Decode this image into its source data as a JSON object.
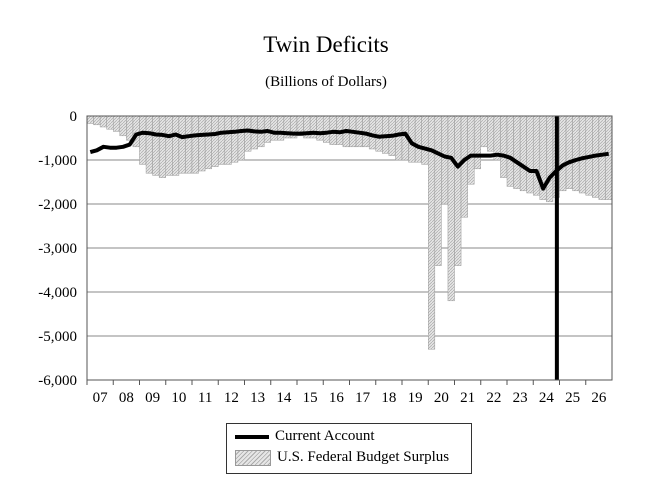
{
  "chart_data": {
    "type": "bar+line",
    "title": "Twin Deficits",
    "subtitle": "(Billions of Dollars)",
    "xlabel": "",
    "ylabel": "",
    "ylim": [
      -6000,
      0
    ],
    "yticks": [
      0,
      -1000,
      -2000,
      -3000,
      -4000,
      -5000,
      -6000
    ],
    "ytick_labels": [
      "0",
      "-1,000",
      "-2,000",
      "-3,000",
      "-4,000",
      "-5,000",
      "-6,000"
    ],
    "xtick_labels": [
      "07",
      "08",
      "09",
      "10",
      "11",
      "12",
      "13",
      "14",
      "15",
      "16",
      "17",
      "18",
      "19",
      "20",
      "21",
      "22",
      "23",
      "24",
      "25",
      "26"
    ],
    "x_start_year": 2007,
    "frequency": "quarterly",
    "grid": true,
    "legend_position": "bottom-center",
    "vertical_marker_year": 2024.9,
    "series": [
      {
        "name": "Current Account",
        "type": "line",
        "color": "#000000",
        "values": [
          -820,
          -780,
          -700,
          -720,
          -720,
          -700,
          -650,
          -420,
          -380,
          -390,
          -420,
          -430,
          -460,
          -420,
          -480,
          -460,
          -440,
          -430,
          -420,
          -410,
          -380,
          -370,
          -360,
          -340,
          -330,
          -350,
          -360,
          -340,
          -380,
          -380,
          -390,
          -400,
          -400,
          -390,
          -380,
          -390,
          -380,
          -360,
          -370,
          -340,
          -360,
          -380,
          -400,
          -440,
          -470,
          -460,
          -450,
          -420,
          -400,
          -620,
          -700,
          -740,
          -780,
          -850,
          -920,
          -950,
          -1150,
          -1000,
          -900,
          -900,
          -900,
          -900,
          -880,
          -900,
          -950,
          -1050,
          -1150,
          -1250,
          -1250,
          -1650,
          -1400,
          -1250,
          -1120,
          -1050,
          -1000,
          -960,
          -930,
          -900,
          -880,
          -860
        ]
      },
      {
        "name": "U.S. Federal Budget Surplus",
        "type": "bar",
        "color": "#d8d8d8",
        "values": [
          -170,
          -200,
          -250,
          -300,
          -350,
          -450,
          -550,
          -700,
          -1100,
          -1300,
          -1350,
          -1400,
          -1350,
          -1350,
          -1300,
          -1300,
          -1300,
          -1250,
          -1200,
          -1150,
          -1100,
          -1100,
          -1050,
          -1000,
          -800,
          -750,
          -700,
          -600,
          -550,
          -550,
          -500,
          -500,
          -450,
          -500,
          -500,
          -550,
          -600,
          -650,
          -650,
          -700,
          -700,
          -700,
          -700,
          -750,
          -800,
          -850,
          -900,
          -1000,
          -1000,
          -1050,
          -1050,
          -1100,
          -5300,
          -3400,
          -2000,
          -4200,
          -3400,
          -2300,
          -1550,
          -1200,
          -700,
          -800,
          -1000,
          -1400,
          -1600,
          -1650,
          -1700,
          -1750,
          -1800,
          -1900,
          -1950,
          -1850,
          -1700,
          -1650,
          -1700,
          -1750,
          -1800,
          -1850,
          -1900,
          -1900
        ]
      }
    ]
  }
}
